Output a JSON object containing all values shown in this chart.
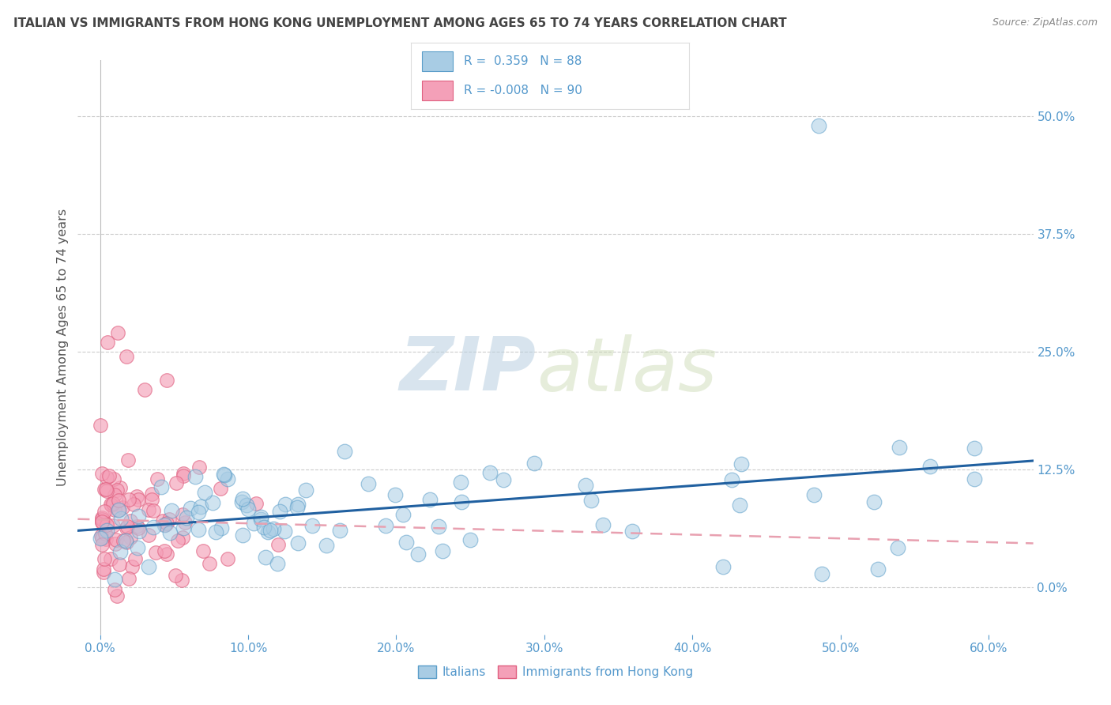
{
  "title": "ITALIAN VS IMMIGRANTS FROM HONG KONG UNEMPLOYMENT AMONG AGES 65 TO 74 YEARS CORRELATION CHART",
  "source_text": "Source: ZipAtlas.com",
  "ylabel": "Unemployment Among Ages 65 to 74 years",
  "xlabel_vals": [
    0.0,
    10.0,
    20.0,
    30.0,
    40.0,
    50.0,
    60.0
  ],
  "ylabel_vals": [
    0.0,
    12.5,
    25.0,
    37.5,
    50.0
  ],
  "xlim": [
    -1.5,
    63.0
  ],
  "ylim": [
    -5.0,
    56.0
  ],
  "italians_color": "#a8cce4",
  "hk_color": "#f4a0b8",
  "italians_edge": "#5b9ec9",
  "hk_edge": "#e06080",
  "trend_italian_color": "#2060a0",
  "trend_hk_color": "#e8a0b0",
  "trend_hk_dash": [
    6,
    4
  ],
  "R_italian": 0.359,
  "N_italian": 88,
  "R_hk": -0.008,
  "N_hk": 90,
  "legend_label_italian": "Italians",
  "legend_label_hk": "Immigrants from Hong Kong",
  "watermark_zip": "ZIP",
  "watermark_atlas": "atlas",
  "background_color": "#ffffff",
  "grid_color": "#cccccc",
  "title_color": "#444444",
  "axis_label_color": "#5599cc",
  "right_tick_color": "#5599cc",
  "seed": 7,
  "slope_it": 0.115,
  "intercept_it": 6.2,
  "slope_hk": -0.04,
  "intercept_hk": 7.2
}
